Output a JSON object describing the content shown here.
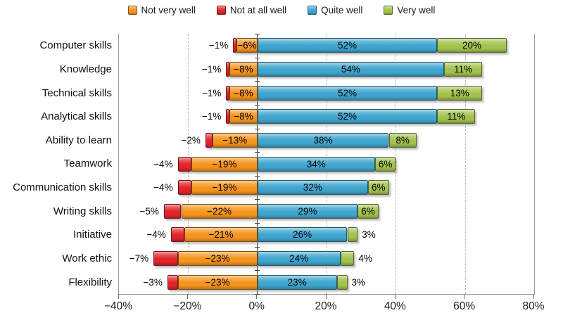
{
  "legend": {
    "position": "top",
    "items": [
      {
        "label": "Not very well",
        "color": "#F5941F"
      },
      {
        "label": "Not at all well",
        "color": "#E2252B"
      },
      {
        "label": "Quite well",
        "color": "#3FA5CE"
      },
      {
        "label": "Very well",
        "color": "#A2C24D"
      }
    ]
  },
  "chart_data": {
    "type": "bar",
    "variant": "horizontal-diverging-stacked",
    "title": "",
    "xlabel": "",
    "ylabel": "",
    "categories": [
      "Computer skills",
      "Knowledge",
      "Technical skills",
      "Analytical skills",
      "Ability to learn",
      "Teamwork",
      "Communication skills",
      "Writing skills",
      "Initiative",
      "Work ethic",
      "Flexibility"
    ],
    "series": [
      {
        "name": "Not at all well",
        "color": "#E2252B",
        "side": "negative",
        "order": "outer",
        "values": [
          -1,
          -1,
          -1,
          -1,
          -2,
          -4,
          -4,
          -5,
          -4,
          -7,
          -3
        ],
        "labels": [
          "−1%",
          "−1%",
          "−1%",
          "−1%",
          "−2%",
          "−4%",
          "−4%",
          "−5%",
          "−4%",
          "−7%",
          "−3%"
        ],
        "label_placement": "outside"
      },
      {
        "name": "Not very well",
        "color": "#F5941F",
        "side": "negative",
        "order": "inner",
        "values": [
          -6,
          -8,
          -8,
          -8,
          -13,
          -19,
          -19,
          -22,
          -21,
          -23,
          -23
        ],
        "labels": [
          "−6%",
          "−8%",
          "−8%",
          "−8%",
          "−13%",
          "−19%",
          "−19%",
          "−22%",
          "−21%",
          "−23%",
          "−23%"
        ],
        "label_placement": "inside"
      },
      {
        "name": "Quite well",
        "color": "#3FA5CE",
        "side": "positive",
        "order": "inner",
        "values": [
          52,
          54,
          52,
          52,
          38,
          34,
          32,
          29,
          26,
          24,
          23
        ],
        "labels": [
          "52%",
          "54%",
          "52%",
          "52%",
          "38%",
          "34%",
          "32%",
          "29%",
          "26%",
          "24%",
          "23%"
        ],
        "label_placement": "inside"
      },
      {
        "name": "Very well",
        "color": "#A2C24D",
        "side": "positive",
        "order": "outer",
        "values": [
          20,
          11,
          13,
          11,
          8,
          6,
          6,
          6,
          3,
          4,
          3
        ],
        "labels": [
          "20%",
          "11%",
          "13%",
          "11%",
          "8%",
          "6%",
          "6%",
          "6%",
          "3%",
          "4%",
          "3%"
        ],
        "label_placement": "auto"
      }
    ],
    "axis": {
      "min": -40,
      "max": 80,
      "step": 20,
      "tick_labels": [
        "−40%",
        "−20%",
        "0%",
        "20%",
        "40%",
        "60%",
        "80%"
      ]
    },
    "grid": {
      "vertical_dashed_at": [
        -20,
        20,
        40,
        60
      ],
      "zero_line": true
    },
    "legend_position": "top"
  }
}
